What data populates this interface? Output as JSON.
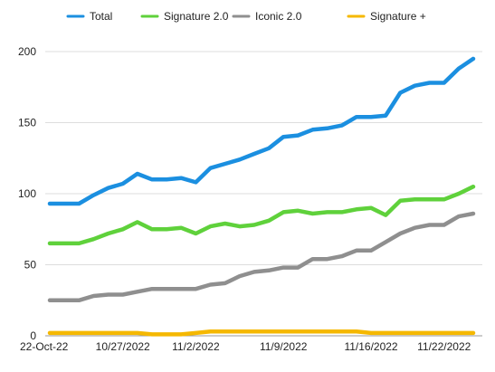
{
  "chart_data": {
    "type": "line",
    "title": "",
    "xlabel": "",
    "ylabel": "",
    "ylim": [
      0,
      200
    ],
    "yticks": [
      0,
      50,
      100,
      150,
      200
    ],
    "grid": true,
    "legend_position": "top",
    "xtick_labels": [
      "22-Oct-22",
      "10/27/2022",
      "11/2/2022",
      "11/9/2022",
      "11/16/2022",
      "11/22/2022"
    ],
    "xtick_index": [
      0,
      5,
      10,
      16,
      22,
      27
    ],
    "series": [
      {
        "name": "Total",
        "color": "#1b8fe0",
        "values": [
          93,
          93,
          93,
          99,
          104,
          107,
          114,
          110,
          110,
          111,
          108,
          118,
          121,
          124,
          128,
          132,
          140,
          141,
          145,
          146,
          148,
          154,
          154,
          155,
          171,
          176,
          178,
          178,
          188,
          195
        ]
      },
      {
        "name": "Signature 2.0",
        "color": "#5fd13b",
        "values": [
          65,
          65,
          65,
          68,
          72,
          75,
          80,
          75,
          75,
          76,
          72,
          77,
          79,
          77,
          78,
          81,
          87,
          88,
          86,
          87,
          87,
          89,
          90,
          85,
          95,
          96,
          96,
          96,
          100,
          105
        ]
      },
      {
        "name": "Iconic 2.0",
        "color": "#8f8f8f",
        "values": [
          25,
          25,
          25,
          28,
          29,
          29,
          31,
          33,
          33,
          33,
          33,
          36,
          37,
          42,
          45,
          46,
          48,
          48,
          54,
          54,
          56,
          60,
          60,
          66,
          72,
          76,
          78,
          78,
          84,
          86
        ]
      },
      {
        "name": "Signature +",
        "color": "#f5b800",
        "values": [
          2,
          2,
          2,
          2,
          2,
          2,
          2,
          1,
          1,
          1,
          2,
          3,
          3,
          3,
          3,
          3,
          3,
          3,
          3,
          3,
          3,
          3,
          2,
          2,
          2,
          2,
          2,
          2,
          2,
          2
        ]
      }
    ]
  }
}
